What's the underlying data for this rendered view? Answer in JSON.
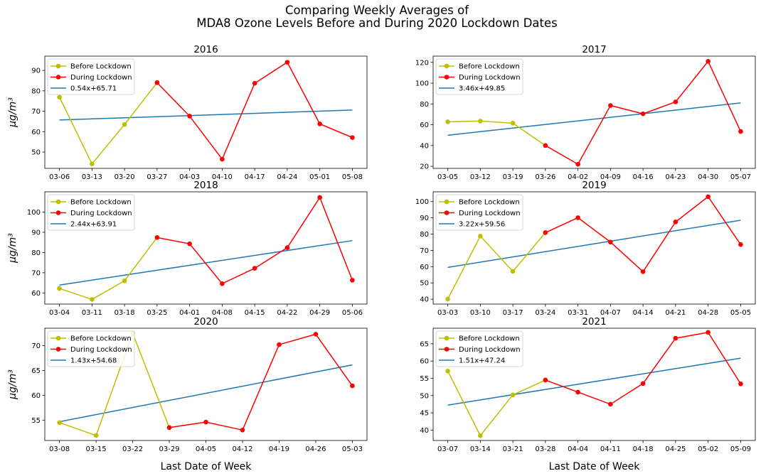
{
  "figure": {
    "title_line1": "Comparing Weekly Averages of",
    "title_line2": "MDA8 Ozone Levels Before and During 2020 Lockdown Dates",
    "ylabel": "μg/m³",
    "xlabel": "Last Date of Week"
  },
  "legend": {
    "before": "Before Lockdown",
    "during": "During Lockdown"
  },
  "colors": {
    "before": "#bfbf00",
    "during": "#ff0000",
    "trend": "#1f77b4"
  },
  "chart_data": [
    {
      "type": "line",
      "title": "2016",
      "categories": [
        "03-06",
        "03-13",
        "03-20",
        "03-27",
        "04-03",
        "04-10",
        "04-17",
        "04-24",
        "05-01",
        "05-08"
      ],
      "before": [
        76.9,
        44.2,
        63.5,
        84.0
      ],
      "during": [
        84.0,
        67.6,
        46.5,
        83.7,
        94.0,
        63.8,
        57.1
      ],
      "during_start_index": 3,
      "trend_label": "0.54x+65.71",
      "trend": [
        0.54,
        65.71
      ],
      "ylim": [
        42,
        97
      ],
      "yticks": [
        50,
        60,
        70,
        80,
        90
      ]
    },
    {
      "type": "line",
      "title": "2017",
      "categories": [
        "03-05",
        "03-12",
        "03-19",
        "03-26",
        "04-02",
        "04-09",
        "04-16",
        "04-23",
        "04-30",
        "05-07"
      ],
      "before": [
        62.8,
        63.5,
        61.5,
        40.0
      ],
      "during": [
        40.0,
        22.0,
        78.5,
        70.5,
        82.0,
        121.0,
        53.5
      ],
      "during_start_index": 3,
      "trend_label": "3.46x+49.85",
      "trend": [
        3.46,
        49.85
      ],
      "ylim": [
        18,
        126
      ],
      "yticks": [
        20,
        40,
        60,
        80,
        100,
        120
      ]
    },
    {
      "type": "line",
      "title": "2018",
      "categories": [
        "03-04",
        "03-11",
        "03-18",
        "03-25",
        "04-01",
        "04-08",
        "04-15",
        "04-22",
        "04-29",
        "05-06"
      ],
      "before": [
        62.2,
        56.8,
        66.0,
        87.4
      ],
      "during": [
        87.4,
        84.3,
        64.6,
        72.2,
        82.4,
        107.2,
        66.3
      ],
      "during_start_index": 3,
      "trend_label": "2.44x+63.91",
      "trend": [
        2.44,
        63.91
      ],
      "ylim": [
        54.5,
        110
      ],
      "yticks": [
        60,
        70,
        80,
        90,
        100
      ]
    },
    {
      "type": "line",
      "title": "2019",
      "categories": [
        "03-03",
        "03-10",
        "03-17",
        "03-24",
        "03-31",
        "04-07",
        "04-14",
        "04-21",
        "04-28",
        "05-05"
      ],
      "before": [
        40.1,
        78.8,
        57.1,
        80.9
      ],
      "during": [
        80.9,
        90.1,
        75.1,
        56.9,
        87.5,
        103.0,
        73.6
      ],
      "during_start_index": 3,
      "trend_label": "3.22x+59.56",
      "trend": [
        3.22,
        59.56
      ],
      "ylim": [
        37,
        106
      ],
      "yticks": [
        40,
        50,
        60,
        70,
        80,
        90,
        100
      ]
    },
    {
      "type": "line",
      "title": "2020",
      "categories": [
        "03-08",
        "03-15",
        "03-22",
        "03-29",
        "04-05",
        "04-12",
        "04-19",
        "04-26",
        "05-03"
      ],
      "before": [
        54.5,
        51.9,
        72.5,
        53.5
      ],
      "during": [
        53.5,
        54.6,
        53.0,
        70.2,
        72.3,
        61.9
      ],
      "during_start_index": 3,
      "trend_label": "1.43x+54.68",
      "trend": [
        1.43,
        54.68
      ],
      "ylim": [
        50.9,
        73.5
      ],
      "yticks": [
        55,
        60,
        65,
        70
      ]
    },
    {
      "type": "line",
      "title": "2021",
      "categories": [
        "03-07",
        "03-14",
        "03-21",
        "03-28",
        "04-04",
        "04-11",
        "04-18",
        "04-25",
        "05-02",
        "05-09"
      ],
      "before": [
        57.1,
        38.4,
        50.2,
        54.5
      ],
      "during": [
        54.5,
        51.0,
        47.5,
        53.5,
        66.6,
        68.3,
        53.4
      ],
      "during_start_index": 3,
      "trend_label": "1.51x+47.24",
      "trend": [
        1.51,
        47.24
      ],
      "ylim": [
        37.0,
        69.5
      ],
      "yticks": [
        40,
        45,
        50,
        55,
        60,
        65
      ]
    }
  ]
}
